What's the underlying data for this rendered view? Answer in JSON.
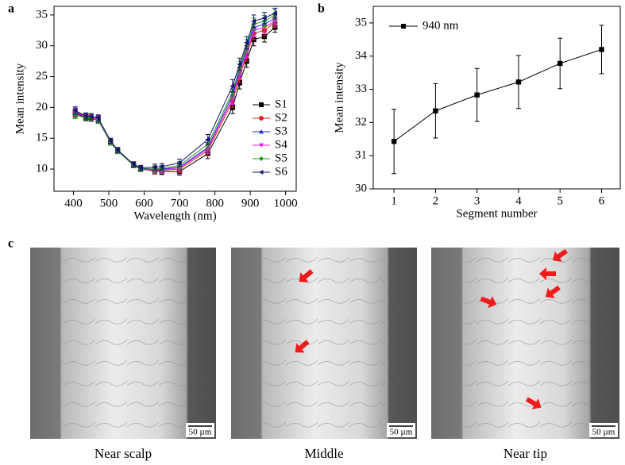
{
  "panels": {
    "labels": [
      "a",
      "b",
      "c"
    ]
  },
  "chart_data": [
    {
      "type": "line",
      "x_label": "Wavelength (nm)",
      "y_label": "Mean intensity",
      "x": [
        405,
        435,
        450,
        470,
        505,
        525,
        570,
        590,
        630,
        650,
        700,
        780,
        850,
        870,
        890,
        910,
        940,
        970
      ],
      "xlim": [
        345,
        1030
      ],
      "xticks": [
        400,
        500,
        600,
        700,
        800,
        900,
        1000
      ],
      "ylim": [
        6.4,
        36.4
      ],
      "yticks": [
        10,
        15,
        20,
        25,
        30,
        35
      ],
      "legend": "lower right",
      "series": [
        {
          "name": "S1",
          "color": "#000000",
          "marker": "square",
          "values": [
            19.0,
            18.4,
            18.3,
            18.0,
            14.3,
            13.0,
            10.6,
            10.0,
            9.7,
            9.6,
            9.6,
            12.5,
            20.0,
            24.0,
            27.5,
            31.0,
            31.5,
            33.0
          ],
          "errors": [
            0.6,
            0.5,
            0.5,
            0.5,
            0.4,
            0.4,
            0.4,
            0.4,
            0.5,
            0.5,
            0.6,
            0.8,
            1.0,
            1.0,
            1.0,
            1.0,
            0.9,
            0.8
          ]
        },
        {
          "name": "S2",
          "color": "#e8251f",
          "marker": "circle",
          "values": [
            19.1,
            18.5,
            18.3,
            18.1,
            14.4,
            13.0,
            10.6,
            10.0,
            9.8,
            9.8,
            10.0,
            13.0,
            21.0,
            25.0,
            28.5,
            32.0,
            32.5,
            33.8
          ],
          "errors": [
            0.6,
            0.5,
            0.5,
            0.5,
            0.4,
            0.4,
            0.4,
            0.4,
            0.5,
            0.5,
            0.6,
            0.8,
            1.0,
            1.0,
            1.0,
            1.0,
            0.9,
            0.8
          ]
        },
        {
          "name": "S3",
          "color": "#1f2de0",
          "marker": "triangle-up",
          "values": [
            19.3,
            18.6,
            18.4,
            18.2,
            14.5,
            13.1,
            10.7,
            10.1,
            10.0,
            10.0,
            10.3,
            13.5,
            22.0,
            26.0,
            29.5,
            33.0,
            33.5,
            34.5
          ],
          "errors": [
            0.6,
            0.5,
            0.5,
            0.5,
            0.4,
            0.4,
            0.4,
            0.4,
            0.5,
            0.5,
            0.6,
            0.8,
            1.0,
            1.0,
            1.0,
            1.0,
            0.9,
            0.8
          ]
        },
        {
          "name": "S4",
          "color": "#e020e0",
          "marker": "triangle-down",
          "values": [
            19.2,
            18.5,
            18.4,
            18.1,
            14.4,
            13.0,
            10.6,
            10.0,
            9.9,
            9.9,
            10.2,
            13.3,
            21.5,
            25.5,
            29.0,
            32.5,
            33.0,
            34.0
          ],
          "errors": [
            0.6,
            0.5,
            0.5,
            0.5,
            0.4,
            0.4,
            0.4,
            0.4,
            0.5,
            0.5,
            0.6,
            0.8,
            1.0,
            1.0,
            1.0,
            1.0,
            0.9,
            0.8
          ]
        },
        {
          "name": "S5",
          "color": "#1a9a1a",
          "marker": "diamond",
          "values": [
            18.8,
            18.3,
            18.2,
            17.9,
            14.3,
            12.9,
            10.6,
            10.0,
            10.0,
            10.1,
            10.6,
            14.0,
            22.5,
            26.5,
            30.0,
            33.5,
            34.0,
            35.0
          ],
          "errors": [
            0.6,
            0.5,
            0.5,
            0.5,
            0.4,
            0.4,
            0.4,
            0.4,
            0.5,
            0.5,
            0.6,
            0.8,
            1.0,
            1.0,
            1.0,
            1.0,
            0.9,
            0.8
          ]
        },
        {
          "name": "S6",
          "color": "#14146e",
          "marker": "triangle-left",
          "values": [
            19.5,
            18.6,
            18.5,
            18.3,
            14.6,
            13.1,
            10.8,
            10.2,
            10.3,
            10.4,
            11.0,
            14.8,
            23.5,
            27.0,
            30.5,
            34.0,
            34.5,
            35.3
          ],
          "errors": [
            0.6,
            0.5,
            0.5,
            0.5,
            0.4,
            0.4,
            0.4,
            0.4,
            0.5,
            0.5,
            0.6,
            0.8,
            1.0,
            1.0,
            1.0,
            1.0,
            0.9,
            0.8
          ]
        }
      ]
    },
    {
      "type": "line",
      "x_label": "Segment number",
      "y_label": "Mean intensity",
      "x": [
        1,
        2,
        3,
        4,
        5,
        6
      ],
      "xlim": [
        0.5,
        6.45
      ],
      "xticks": [
        1,
        2,
        3,
        4,
        5,
        6
      ],
      "ylim": [
        30,
        35.5
      ],
      "yticks": [
        30,
        31,
        32,
        33,
        34,
        35
      ],
      "legend": "upper left",
      "series": [
        {
          "name": "940 nm",
          "color": "#000000",
          "marker": "square",
          "values": [
            31.43,
            32.35,
            32.83,
            33.22,
            33.78,
            34.2
          ],
          "errors": [
            0.97,
            0.82,
            0.8,
            0.8,
            0.76,
            0.73
          ]
        }
      ]
    }
  ],
  "images": [
    {
      "caption": "Near scalp",
      "scale_bar": "50 µm"
    },
    {
      "caption": "Middle",
      "scale_bar": "50 µm"
    },
    {
      "caption": "Near tip",
      "scale_bar": "50 µm"
    }
  ]
}
